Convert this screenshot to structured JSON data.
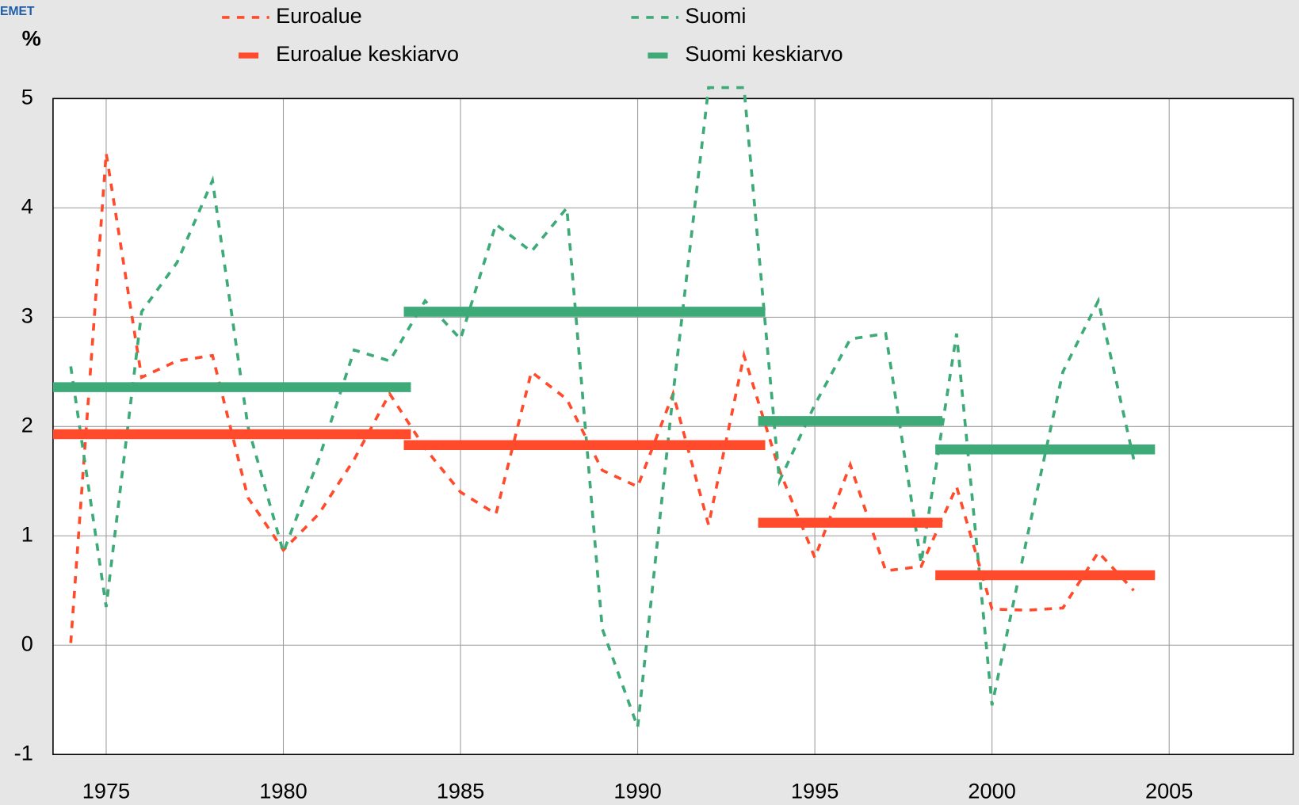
{
  "chart_data": {
    "type": "line",
    "logo_text": "EMET",
    "y_label": "%",
    "xlim": [
      1973.5,
      2008.5
    ],
    "xticks": [
      1975,
      1980,
      1985,
      1990,
      1995,
      2000,
      2005
    ],
    "ylim": [
      -1,
      5
    ],
    "yticks": [
      -1,
      0,
      1,
      2,
      3,
      4,
      5
    ],
    "grid": true,
    "x": [
      1974,
      1975,
      1976,
      1977,
      1978,
      1979,
      1980,
      1981,
      1982,
      1983,
      1984,
      1985,
      1986,
      1987,
      1988,
      1989,
      1990,
      1991,
      1992,
      1993,
      1994,
      1995,
      1996,
      1997,
      1998,
      1999,
      2000,
      2001,
      2002,
      2003,
      2004
    ],
    "series": [
      {
        "name": "Euroalue",
        "color": "#ff4b2b",
        "dashed": true,
        "values": [
          0.02,
          4.5,
          2.45,
          2.6,
          2.65,
          1.35,
          0.87,
          1.2,
          1.7,
          2.3,
          1.8,
          1.4,
          1.2,
          2.5,
          2.25,
          1.6,
          1.45,
          2.3,
          1.1,
          2.65,
          1.6,
          0.8,
          1.65,
          0.68,
          0.72,
          1.45,
          0.33,
          0.32,
          0.34,
          0.85,
          0.5
        ]
      },
      {
        "name": "Suomi",
        "color": "#3daa78",
        "dashed": true,
        "values": [
          2.55,
          0.35,
          3.05,
          3.5,
          4.25,
          2.0,
          0.85,
          1.7,
          2.7,
          2.6,
          3.15,
          2.8,
          3.85,
          3.6,
          4.0,
          0.15,
          -0.75,
          2.3,
          5.1,
          5.1,
          1.5,
          2.2,
          2.8,
          2.85,
          0.75,
          2.85,
          -0.55,
          1.0,
          2.5,
          3.15,
          1.7
        ]
      },
      {
        "name": "Euroalue keskiarvo",
        "color": "#ff4b2b",
        "dashed": false,
        "segments": [
          {
            "x": [
              1973.5,
              1983.6
            ],
            "value": 1.93
          },
          {
            "x": [
              1983.4,
              1993.6
            ],
            "value": 1.83
          },
          {
            "x": [
              1993.4,
              1998.6
            ],
            "value": 1.12
          },
          {
            "x": [
              1998.4,
              2004.6
            ],
            "value": 0.64
          }
        ]
      },
      {
        "name": "Suomi keskiarvo",
        "color": "#3daa78",
        "dashed": false,
        "segments": [
          {
            "x": [
              1973.5,
              1983.6
            ],
            "value": 2.36
          },
          {
            "x": [
              1983.4,
              1993.6
            ],
            "value": 3.05
          },
          {
            "x": [
              1993.4,
              1998.6
            ],
            "value": 2.05
          },
          {
            "x": [
              1998.4,
              2004.6
            ],
            "value": 1.79
          }
        ]
      }
    ]
  }
}
